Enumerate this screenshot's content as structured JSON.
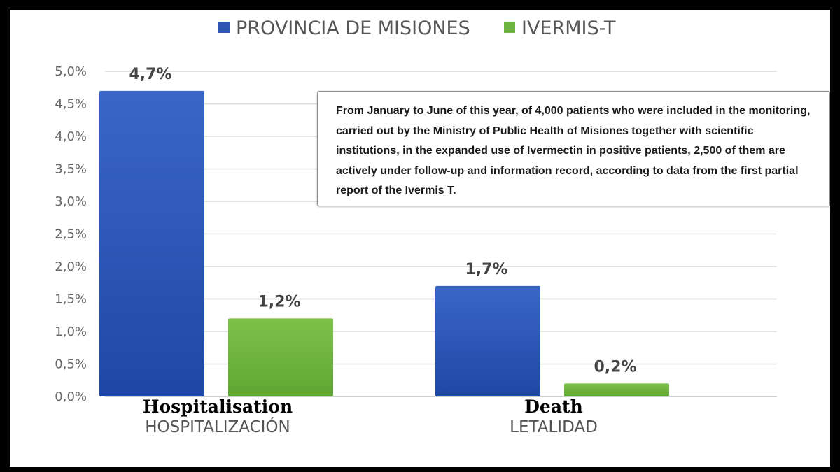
{
  "chart_data": {
    "type": "bar",
    "categories": [
      "HOSPITALIZACIÓN",
      "LETALIDAD"
    ],
    "category_annotations": [
      "Hospitalisation",
      "Death"
    ],
    "series": [
      {
        "name": "PROVINCIA DE MISIONES",
        "values": [
          4.7,
          1.7
        ],
        "labels": [
          "4,7%",
          "1,7%"
        ],
        "color": "#2f55b4"
      },
      {
        "name": "IVERMIS-T",
        "values": [
          1.2,
          0.2
        ],
        "labels": [
          "1,2%",
          "0,2%"
        ],
        "color": "#6cb33f"
      }
    ],
    "y_ticks": [
      0,
      0.5,
      1,
      1.5,
      2,
      2.5,
      3,
      3.5,
      4,
      4.5,
      5
    ],
    "y_tick_labels": [
      "0,0%",
      "0,5%",
      "1,0%",
      "1,5%",
      "2,0%",
      "2,5%",
      "3,0%",
      "3,5%",
      "4,0%",
      "4,5%",
      "5,0%"
    ],
    "ylim": [
      0,
      5
    ],
    "grid": true,
    "legend_position": "top-center",
    "annotation": "From January to June of this year, of 4,000 patients who were included in the monitoring, carried out by the Ministry of Public Health of Misiones together with scientific institutions, in the expanded use of Ivermectin in positive patients, 2,500 of them are actively under follow-up and information record, according to data from the first partial report of the Ivermis T."
  }
}
